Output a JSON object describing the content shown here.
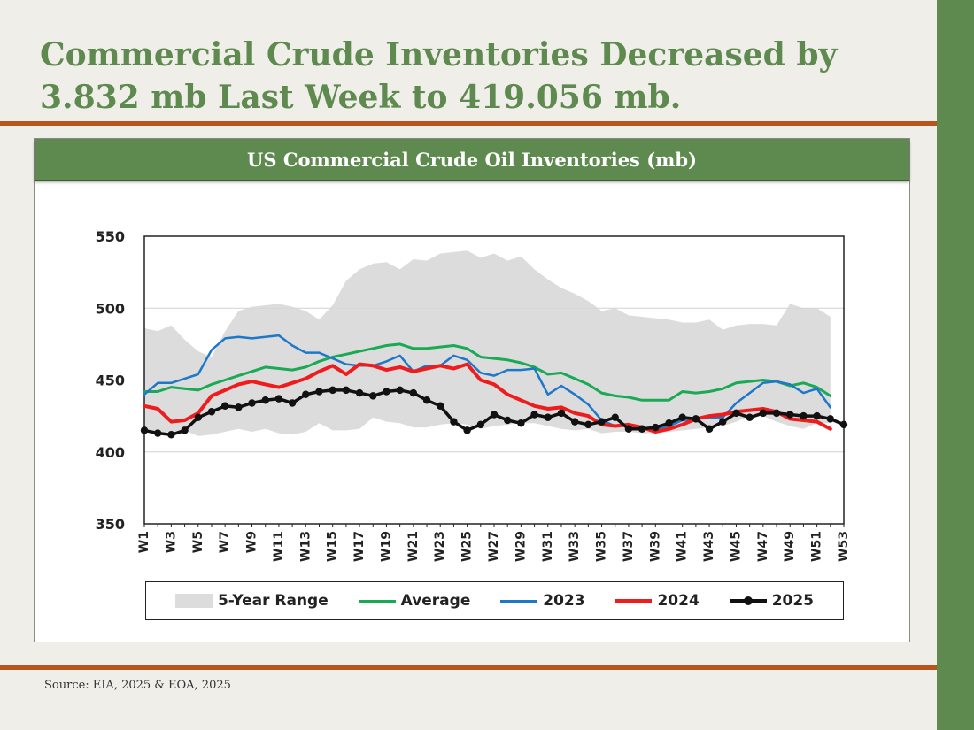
{
  "slide": {
    "title_line1": "Commercial Crude Inventories Decreased by",
    "title_line2": "3.832 mb Last Week to 419.056 mb.",
    "source": "Source: EIA, 2025 & EOA, 2025"
  },
  "colors": {
    "title": "#5f8a4f",
    "accent_rule": "#b5561f",
    "range": "#dcdcdc",
    "average": "#1aaa55",
    "y2023": "#1f77c8",
    "y2024": "#ee1c1c",
    "y2025": "#111111"
  },
  "chart_data": {
    "type": "line",
    "title": "US Commercial Crude Oil Inventories (mb)",
    "xlabel": "",
    "ylabel": "",
    "ylim": [
      350,
      550
    ],
    "yticks": [
      350,
      400,
      450,
      500,
      550
    ],
    "grid": true,
    "legend_position": "bottom",
    "x_tick_labels": [
      "W1",
      "W3",
      "W5",
      "W7",
      "W9",
      "W11",
      "W13",
      "W15",
      "W17",
      "W19",
      "W21",
      "W23",
      "W25",
      "W27",
      "W29",
      "W31",
      "W33",
      "W35",
      "W37",
      "W39",
      "W41",
      "W43",
      "W45",
      "W47",
      "W49",
      "W51",
      "W53"
    ],
    "weeks": 53,
    "range_label": "5-Year Range",
    "range_max": [
      486,
      484,
      488,
      478,
      470,
      466,
      484,
      498,
      501,
      502,
      503,
      501,
      498,
      492,
      502,
      519,
      527,
      531,
      532,
      527,
      534,
      533,
      538,
      539,
      540,
      535,
      538,
      533,
      536,
      527,
      520,
      514,
      510,
      505,
      498,
      500,
      495,
      494,
      493,
      492,
      490,
      490,
      492,
      485,
      488,
      489,
      489,
      488,
      503,
      500,
      500,
      494
    ],
    "range_min": [
      415,
      413,
      414,
      415,
      411,
      412,
      414,
      416,
      414,
      416,
      413,
      412,
      414,
      420,
      415,
      415,
      416,
      424,
      421,
      420,
      417,
      417,
      419,
      420,
      419,
      416,
      418,
      419,
      420,
      420,
      418,
      416,
      415,
      416,
      413,
      414,
      414,
      413,
      413,
      414,
      415,
      416,
      417,
      418,
      421,
      425,
      425,
      421,
      418,
      416,
      420,
      420
    ],
    "series": [
      {
        "name": "Average",
        "values": [
          442,
          442,
          445,
          444,
          443,
          447,
          450,
          453,
          456,
          459,
          458,
          457,
          459,
          463,
          466,
          468,
          470,
          472,
          474,
          475,
          472,
          472,
          473,
          474,
          472,
          466,
          465,
          464,
          462,
          459,
          454,
          455,
          451,
          447,
          441,
          439,
          438,
          436,
          436,
          436,
          442,
          441,
          442,
          444,
          448,
          449,
          450,
          449,
          446,
          448,
          445,
          439
        ]
      },
      {
        "name": "2023",
        "values": [
          440,
          448,
          448,
          451,
          454,
          471,
          479,
          480,
          479,
          480,
          481,
          474,
          469,
          469,
          465,
          461,
          460,
          460,
          463,
          467,
          456,
          460,
          460,
          467,
          464,
          455,
          453,
          457,
          457,
          458,
          440,
          446,
          440,
          433,
          422,
          418,
          418,
          416,
          416,
          418,
          422,
          423,
          424,
          424,
          434,
          441,
          448,
          449,
          447,
          441,
          444,
          431
        ]
      },
      {
        "name": "2024",
        "values": [
          432,
          430,
          421,
          422,
          427,
          439,
          443,
          447,
          449,
          447,
          445,
          448,
          451,
          456,
          460,
          454,
          461,
          460,
          457,
          459,
          456,
          458,
          460,
          458,
          461,
          450,
          447,
          440,
          436,
          432,
          430,
          431,
          427,
          425,
          419,
          418,
          419,
          417,
          414,
          416,
          419,
          423,
          425,
          426,
          428,
          429,
          430,
          428,
          423,
          422,
          421,
          416
        ]
      },
      {
        "name": "2025",
        "values": [
          415,
          413,
          412,
          415,
          424,
          428,
          432,
          431,
          434,
          436,
          437,
          434,
          440,
          442,
          443,
          443,
          441,
          439,
          442,
          443,
          441,
          436,
          432,
          421,
          415,
          419,
          426,
          422,
          420,
          426,
          424,
          427,
          421,
          419,
          421,
          424,
          416,
          416,
          417,
          420,
          424,
          423,
          416,
          421,
          427,
          424,
          427,
          427,
          426,
          425,
          425,
          423,
          419
        ]
      }
    ]
  }
}
